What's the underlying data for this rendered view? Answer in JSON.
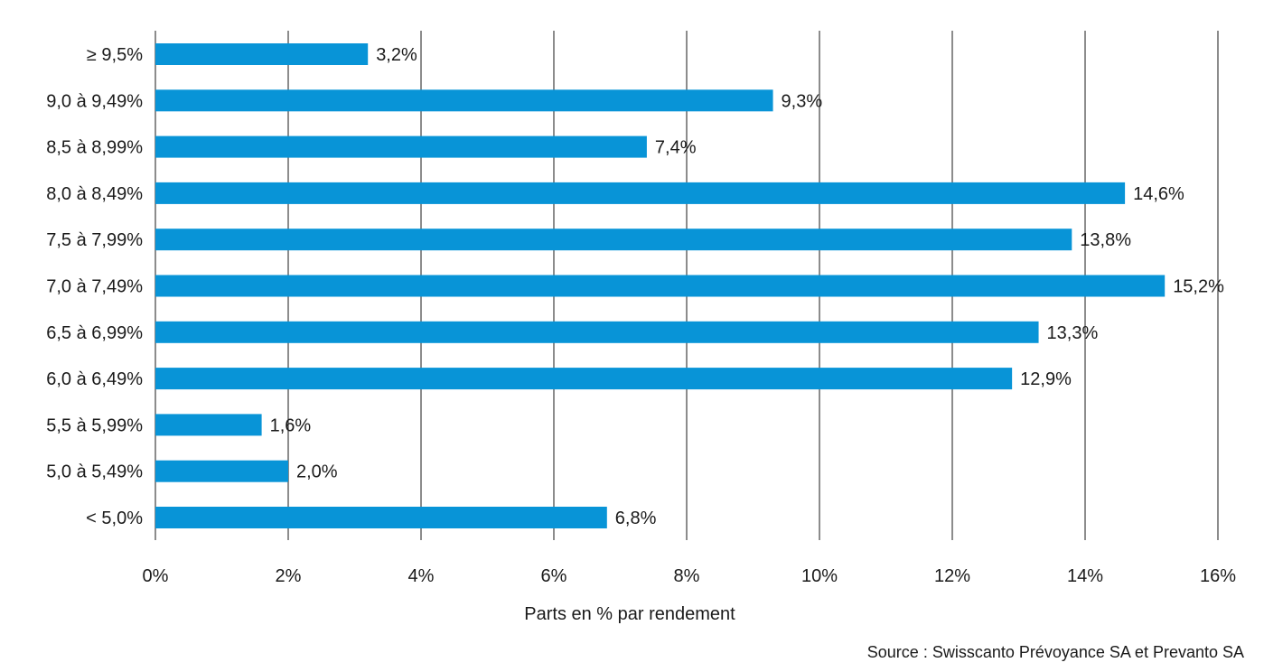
{
  "chart_data": {
    "type": "bar",
    "orientation": "horizontal",
    "categories": [
      "≥ 9,5%",
      "9,0 à 9,49%",
      "8,5 à 8,99%",
      "8,0 à 8,49%",
      "7,5 à 7,99%",
      "7,0 à 7,49%",
      "6,5 à 6,99%",
      "6,0 à 6,49%",
      "5,5 à 5,99%",
      "5,0 à 5,49%",
      "< 5,0%"
    ],
    "values": [
      3.2,
      9.3,
      7.4,
      14.6,
      13.8,
      15.2,
      13.3,
      12.9,
      1.6,
      2.0,
      6.8
    ],
    "value_labels": [
      "3,2%",
      "9,3%",
      "7,4%",
      "14,6%",
      "13,8%",
      "15,2%",
      "13,3%",
      "12,9%",
      "1,6%",
      "2,0%",
      "6,8%"
    ],
    "xlim": [
      0,
      16
    ],
    "x_ticks": [
      0,
      2,
      4,
      6,
      8,
      10,
      12,
      14,
      16
    ],
    "x_tick_labels": [
      "0%",
      "2%",
      "4%",
      "6%",
      "8%",
      "10%",
      "12%",
      "14%",
      "16%"
    ],
    "xlabel": "Parts en % par rendement",
    "ylabel": "",
    "title": "",
    "grid": "vertical",
    "legend": "none",
    "bar_color": "#0894d7",
    "grid_color": "#1a1a1a"
  },
  "source": "Source : Swisscanto Prévoyance SA et Prevanto SA"
}
